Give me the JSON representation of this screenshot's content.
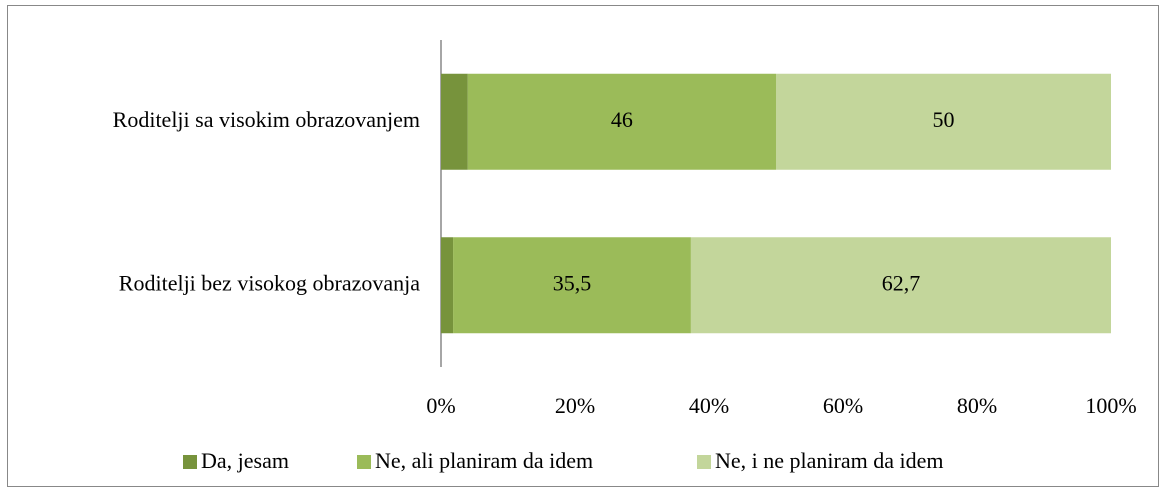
{
  "chart_data": {
    "type": "stacked-bar-horizontal",
    "categories": [
      "Roditelji sa visokim obrazovanjem",
      "Roditelji bez visokog obrazovanja"
    ],
    "series": [
      {
        "name": "Da, jesam",
        "color": "#77933c",
        "values": [
          4,
          1.8
        ],
        "value_labels": [
          "4",
          "1,8"
        ]
      },
      {
        "name": "Ne, ali planiram da idem",
        "color": "#9bbb59",
        "values": [
          46,
          35.5
        ],
        "value_labels": [
          "46",
          "35,5"
        ]
      },
      {
        "name": "Ne, i ne planiram da idem",
        "color": "#c3d69b",
        "values": [
          50,
          62.7
        ],
        "value_labels": [
          "50",
          "62,7"
        ]
      }
    ],
    "xlim": [
      0,
      100
    ],
    "xticks": [
      {
        "value": 0,
        "label": "0%"
      },
      {
        "value": 20,
        "label": "20%"
      },
      {
        "value": 40,
        "label": "40%"
      },
      {
        "value": 60,
        "label": "60%"
      },
      {
        "value": 80,
        "label": "80%"
      },
      {
        "value": 100,
        "label": "100%"
      }
    ],
    "grid": false,
    "legend": "bottom"
  }
}
